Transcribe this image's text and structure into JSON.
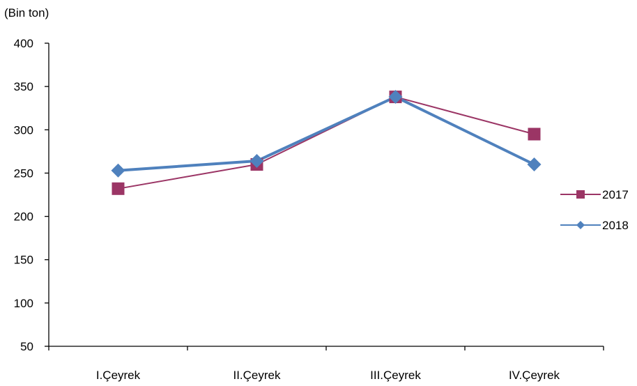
{
  "chart_data": {
    "type": "line",
    "unit_label": "(Bin ton)",
    "categories": [
      "I.Çeyrek",
      "II.Çeyrek",
      "III.Çeyrek",
      "IV.Çeyrek"
    ],
    "series": [
      {
        "name": "2017",
        "values": [
          232,
          260,
          338,
          295
        ],
        "color": "#9b3565",
        "marker": "square"
      },
      {
        "name": "2018",
        "values": [
          253,
          264,
          338,
          260
        ],
        "color": "#4f81bd",
        "marker": "diamond"
      }
    ],
    "ylim": [
      50,
      400
    ],
    "yticks": [
      50,
      100,
      150,
      200,
      250,
      300,
      350,
      400
    ],
    "grid": false,
    "legend_position": "right"
  }
}
